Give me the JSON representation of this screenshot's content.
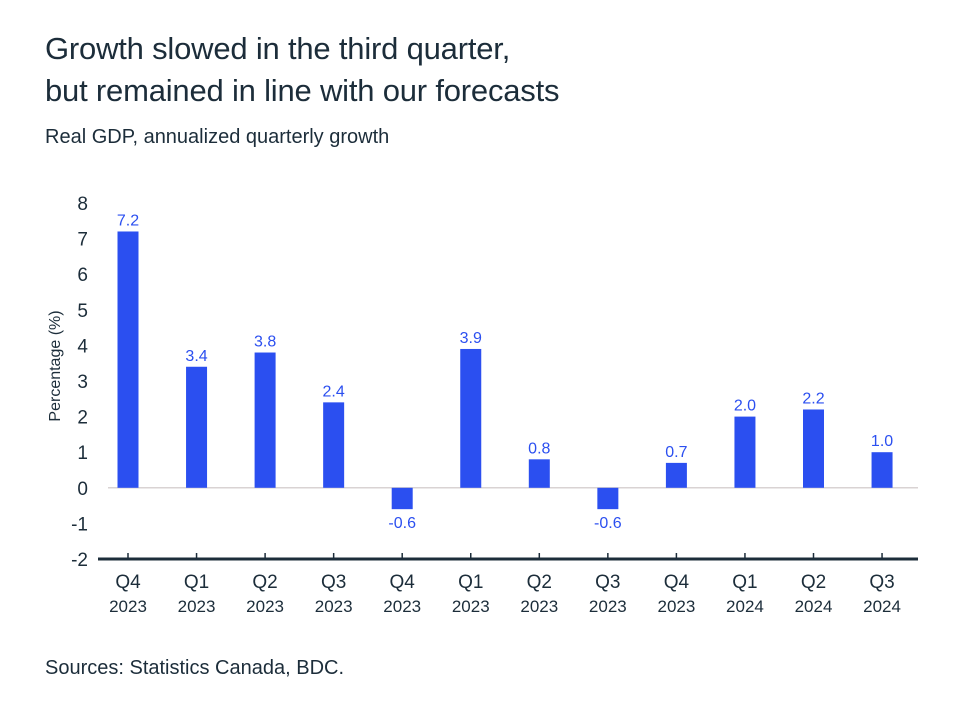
{
  "chart_data": {
    "type": "bar",
    "title": "Growth slowed in the third quarter,\nbut remained in line with our forecasts",
    "title_lines": [
      "Growth slowed in the third quarter,",
      "but remained in line with our forecasts"
    ],
    "subtitle": "Real GDP, annualized quarterly growth",
    "xlabel": "",
    "ylabel": "Percentage (%)",
    "ylim": [
      -2,
      8
    ],
    "yticks": [
      8,
      7,
      6,
      5,
      4,
      3,
      2,
      1,
      0,
      -1,
      -2
    ],
    "grid": false,
    "legend": "none",
    "categories": [
      {
        "quarter": "Q4",
        "year": "2023"
      },
      {
        "quarter": "Q1",
        "year": "2023"
      },
      {
        "quarter": "Q2",
        "year": "2023"
      },
      {
        "quarter": "Q3",
        "year": "2023"
      },
      {
        "quarter": "Q4",
        "year": "2023"
      },
      {
        "quarter": "Q1",
        "year": "2023"
      },
      {
        "quarter": "Q2",
        "year": "2023"
      },
      {
        "quarter": "Q3",
        "year": "2023"
      },
      {
        "quarter": "Q4",
        "year": "2023"
      },
      {
        "quarter": "Q1",
        "year": "2024"
      },
      {
        "quarter": "Q2",
        "year": "2024"
      },
      {
        "quarter": "Q3",
        "year": "2024"
      }
    ],
    "values": [
      7.2,
      3.4,
      3.8,
      2.4,
      -0.6,
      3.9,
      0.8,
      -0.6,
      0.7,
      2.0,
      2.2,
      1.0
    ],
    "data_labels": [
      "7.2",
      "3.4",
      "3.8",
      "2.4",
      "-0.6",
      "3.9",
      "0.8",
      "-0.6",
      "0.7",
      "2.0",
      "2.2",
      "1.0"
    ],
    "source": "Sources: Statistics Canada, BDC."
  },
  "colors": {
    "bar": "#2b4ff0",
    "data_label": "#2b4ff0",
    "text": "#1c2d3a",
    "zero_line": "#d9d3d3",
    "axis": "#1c2d3a"
  }
}
